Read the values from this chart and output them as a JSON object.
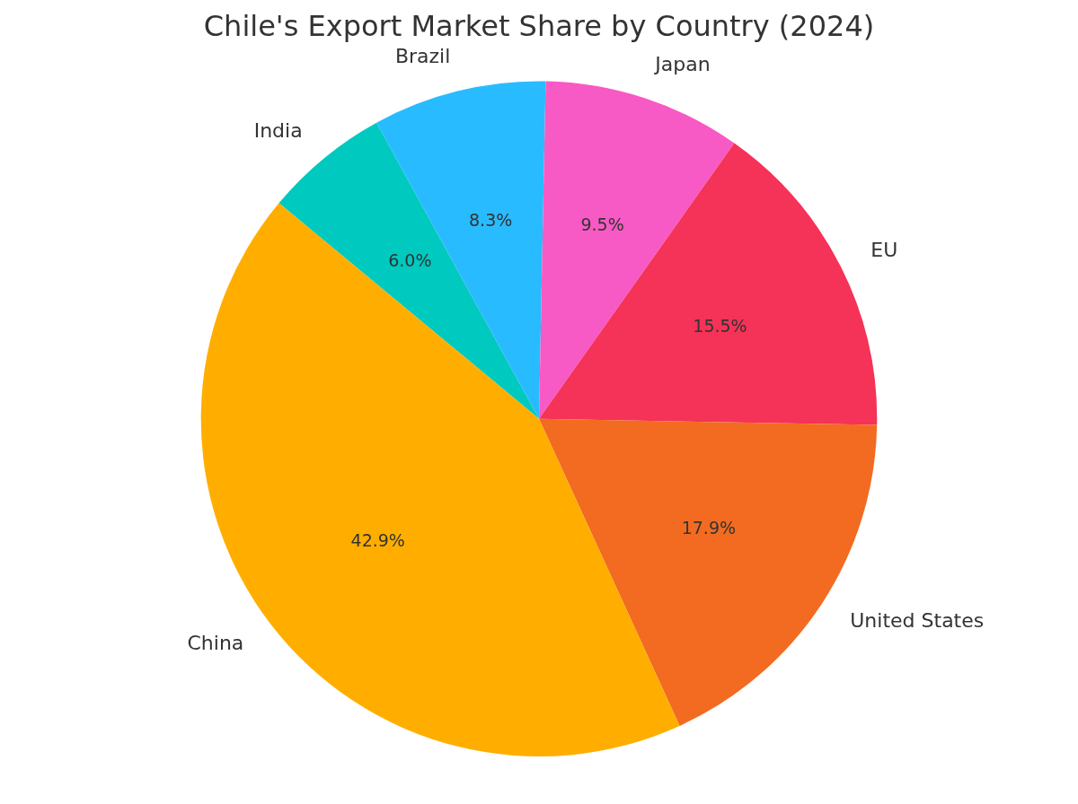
{
  "chart_data": {
    "type": "pie",
    "title": "Chile's Export Market Share by Country (2024)",
    "categories": [
      "India",
      "Brazil",
      "Japan",
      "EU",
      "United States",
      "China"
    ],
    "values": [
      6.0,
      8.3,
      9.5,
      15.5,
      17.9,
      42.9
    ],
    "value_labels": [
      "6.0%",
      "8.3%",
      "9.5%",
      "15.5%",
      "17.9%",
      "42.9%"
    ],
    "colors": [
      "#00c9bf",
      "#29bbff",
      "#f75ac4",
      "#f53257",
      "#f26b21",
      "#ffae00"
    ],
    "legend": false
  }
}
